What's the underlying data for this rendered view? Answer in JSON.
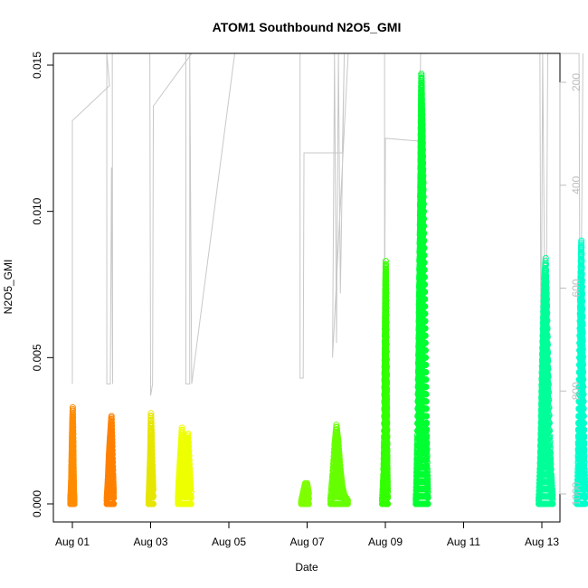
{
  "chart_data": {
    "type": "scatter",
    "title": "ATOM1 Southbound N2O5_GMI",
    "xlabel": "Date",
    "ylabel": "N2O5_GMI",
    "x_date_start": "Aug 01",
    "xlim_days": [
      -0.35,
      12.45
    ],
    "ylim": [
      -0.0005,
      0.0153
    ],
    "x_ticks": [
      "Aug 01",
      "Aug 03",
      "Aug 05",
      "Aug 07",
      "Aug 09",
      "Aug 11",
      "Aug 13"
    ],
    "y_ticks": [
      "0.000",
      "0.005",
      "0.010",
      "0.015"
    ],
    "y2_label": "",
    "y2_ticks": [
      "200",
      "400",
      "600",
      "800",
      "1000"
    ],
    "y2_reversed": true,
    "y2_color": "#bebebe",
    "series": [
      {
        "color": "#ff8c00",
        "points": [
          [
            -0.05,
            0.0002
          ],
          [
            -0.03,
            0.0008
          ],
          [
            -0.02,
            0.0015
          ],
          [
            -0.01,
            0.0022
          ],
          [
            0.0,
            0.0028
          ],
          [
            0.01,
            0.0033
          ],
          [
            0.02,
            0.0024
          ],
          [
            0.03,
            0.0012
          ],
          [
            0.04,
            0.0004
          ],
          [
            0.05,
            0.0001
          ]
        ]
      },
      {
        "color": "#ff8000",
        "points": [
          [
            0.88,
            0.0002
          ],
          [
            0.9,
            0.0006
          ],
          [
            0.92,
            0.0012
          ],
          [
            0.94,
            0.0018
          ],
          [
            0.96,
            0.0022
          ],
          [
            0.98,
            0.0026
          ],
          [
            1.0,
            0.003
          ],
          [
            1.02,
            0.0021
          ],
          [
            1.04,
            0.001
          ],
          [
            1.06,
            0.0003
          ]
        ]
      },
      {
        "color": "#e6e600",
        "points": [
          [
            1.95,
            0.0002
          ],
          [
            1.97,
            0.0009
          ],
          [
            1.99,
            0.0017
          ],
          [
            2.0,
            0.0024
          ],
          [
            2.01,
            0.0031
          ],
          [
            2.03,
            0.0022
          ],
          [
            2.05,
            0.0012
          ],
          [
            2.07,
            0.0004
          ]
        ]
      },
      {
        "color": "#eeff00",
        "points": [
          [
            2.7,
            0.0002
          ],
          [
            2.72,
            0.0008
          ],
          [
            2.75,
            0.0015
          ],
          [
            2.78,
            0.0021
          ],
          [
            2.8,
            0.0026
          ],
          [
            2.84,
            0.0019
          ],
          [
            2.88,
            0.0011
          ],
          [
            2.92,
            0.002
          ],
          [
            2.96,
            0.0024
          ],
          [
            3.0,
            0.0012
          ],
          [
            3.04,
            0.0003
          ]
        ]
      },
      {
        "color": "#7fff00",
        "points": [
          [
            5.85,
            0.0001
          ],
          [
            5.9,
            0.0004
          ],
          [
            5.95,
            0.0007
          ],
          [
            6.0,
            0.0007
          ],
          [
            6.05,
            0.0003
          ]
        ]
      },
      {
        "color": "#66ff00",
        "points": [
          [
            6.6,
            0.0002
          ],
          [
            6.65,
            0.001
          ],
          [
            6.7,
            0.002
          ],
          [
            6.75,
            0.0027
          ],
          [
            6.8,
            0.0021
          ],
          [
            6.85,
            0.0012
          ],
          [
            6.9,
            0.0006
          ],
          [
            6.95,
            0.0003
          ],
          [
            7.05,
            0.0001
          ]
        ]
      },
      {
        "color": "#33ff00",
        "points": [
          [
            7.92,
            0.0002
          ],
          [
            7.95,
            0.001
          ],
          [
            7.97,
            0.0025
          ],
          [
            7.98,
            0.0045
          ],
          [
            7.99,
            0.0062
          ],
          [
            8.0,
            0.0075
          ],
          [
            8.01,
            0.0083
          ],
          [
            8.02,
            0.0072
          ],
          [
            8.03,
            0.0052
          ],
          [
            8.04,
            0.003
          ],
          [
            8.05,
            0.0012
          ],
          [
            8.06,
            0.0003
          ]
        ]
      },
      {
        "color": "#00ff33",
        "points": [
          [
            8.78,
            0.0002
          ],
          [
            8.8,
            0.0012
          ],
          [
            8.82,
            0.0025
          ],
          [
            8.84,
            0.0045
          ],
          [
            8.86,
            0.0068
          ],
          [
            8.88,
            0.0092
          ],
          [
            8.9,
            0.0118
          ],
          [
            8.91,
            0.0135
          ],
          [
            8.92,
            0.0147
          ],
          [
            8.93,
            0.0142
          ],
          [
            8.95,
            0.0128
          ],
          [
            8.97,
            0.011
          ],
          [
            8.99,
            0.009
          ],
          [
            9.01,
            0.007
          ],
          [
            9.03,
            0.005
          ],
          [
            9.05,
            0.003
          ],
          [
            9.07,
            0.0012
          ],
          [
            9.09,
            0.0003
          ]
        ]
      },
      {
        "color": "#00ff99",
        "points": [
          [
            11.92,
            0.0002
          ],
          [
            11.95,
            0.0012
          ],
          [
            11.98,
            0.0028
          ],
          [
            12.0,
            0.0045
          ],
          [
            12.03,
            0.0062
          ],
          [
            12.06,
            0.0077
          ],
          [
            12.1,
            0.0084
          ],
          [
            12.13,
            0.0068
          ],
          [
            12.16,
            0.0046
          ],
          [
            12.2,
            0.0025
          ],
          [
            12.24,
            0.001
          ],
          [
            12.28,
            0.0002
          ]
        ]
      },
      {
        "color": "#00ffcc",
        "points": [
          [
            12.9,
            0.0002
          ],
          [
            12.92,
            0.0012
          ],
          [
            12.94,
            0.003
          ],
          [
            12.96,
            0.005
          ],
          [
            12.98,
            0.007
          ],
          [
            13.0,
            0.0085
          ],
          [
            13.01,
            0.009
          ],
          [
            13.03,
            0.0072
          ],
          [
            13.05,
            0.005
          ],
          [
            13.07,
            0.003
          ],
          [
            13.09,
            0.0012
          ],
          [
            13.11,
            0.0003
          ]
        ]
      }
    ]
  }
}
